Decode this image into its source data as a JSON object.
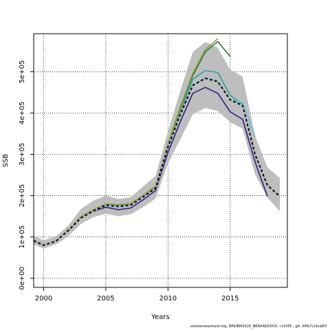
{
  "chart_data": {
    "type": "line",
    "xlabel": "Years",
    "ylabel": "SSB",
    "xlim": [
      1999.2,
      2019.6
    ],
    "ylim": [
      -22000,
      592000
    ],
    "x_ticks": [
      2000,
      2005,
      2010,
      2015
    ],
    "x_tick_labels": [
      "2000",
      "2005",
      "2010",
      "2015"
    ],
    "y_ticks": [
      0,
      100000,
      200000,
      300000,
      400000,
      500000
    ],
    "y_tick_labels": [
      "0e+00",
      "1e+05",
      "2e+05",
      "3e+05",
      "4e+05",
      "5e+05"
    ],
    "grid": true,
    "band": {
      "x": [
        1999,
        2000,
        2001,
        2002,
        2003,
        2004,
        2005,
        2006,
        2007,
        2008,
        2009,
        2010,
        2011,
        2012,
        2013,
        2014,
        2015,
        2016,
        2017,
        2018,
        2019
      ],
      "upper": [
        103000,
        92000,
        102000,
        128000,
        168000,
        188000,
        200000,
        192000,
        196000,
        222000,
        248000,
        355000,
        455000,
        548000,
        572000,
        558000,
        505000,
        488000,
        345000,
        268000,
        243000
      ],
      "lower": [
        82000,
        72000,
        82000,
        102000,
        132000,
        148000,
        156000,
        150000,
        155000,
        172000,
        193000,
        278000,
        337000,
        397000,
        412000,
        405000,
        378000,
        362000,
        252000,
        195000,
        162000
      ]
    },
    "series": [
      {
        "color": "#1e7b3a",
        "dash": false,
        "x": [
          1999,
          2000,
          2001,
          2002,
          2003,
          2004,
          2005,
          2006,
          2007,
          2008,
          2009,
          2010,
          2011,
          2012,
          2013,
          2014,
          2015
        ],
        "values": [
          91000,
          81000,
          91000,
          117000,
          148000,
          165000,
          178000,
          177000,
          180000,
          200000,
          221000,
          323000,
          412000,
          491000,
          548000,
          573000,
          537000
        ]
      },
      {
        "color": "#8a9a22",
        "dash": false,
        "x": [
          1999,
          2000,
          2001,
          2002,
          2003,
          2004,
          2005,
          2006,
          2007,
          2008,
          2009,
          2010,
          2011,
          2012,
          2013,
          2014
        ],
        "values": [
          92000,
          81000,
          91000,
          118000,
          149000,
          166000,
          180000,
          178000,
          181000,
          201000,
          223000,
          326000,
          415000,
          496000,
          553000,
          580000
        ]
      },
      {
        "color": "#23a09a",
        "dash": false,
        "x": [
          1999,
          2000,
          2001,
          2002,
          2003,
          2004,
          2005,
          2006,
          2007,
          2008,
          2009,
          2010,
          2011,
          2012,
          2013,
          2014,
          2015,
          2016
        ],
        "values": [
          90000,
          80000,
          90000,
          116000,
          147000,
          164000,
          177000,
          175000,
          178000,
          198000,
          218000,
          318000,
          402000,
          482000,
          503000,
          498000,
          443000,
          420000
        ]
      },
      {
        "color": "#5bc0e0",
        "dash": false,
        "x": [
          1999,
          2000,
          2001,
          2002,
          2003,
          2004,
          2005,
          2006,
          2007,
          2008,
          2009,
          2010,
          2011,
          2012,
          2013,
          2014,
          2015,
          2016,
          2017
        ],
        "values": [
          90000,
          80000,
          90000,
          116000,
          146000,
          163000,
          175000,
          172000,
          176000,
          196000,
          216000,
          314000,
          396000,
          468000,
          486000,
          478000,
          432000,
          425000,
          342000
        ]
      },
      {
        "color": "#2d1b88",
        "dash": false,
        "x": [
          1999,
          2000,
          2001,
          2002,
          2003,
          2004,
          2005,
          2006,
          2007,
          2008,
          2009,
          2010,
          2011,
          2012,
          2013,
          2014,
          2015,
          2016,
          2017,
          2018
        ],
        "values": [
          90000,
          80000,
          90000,
          115000,
          146000,
          162000,
          172000,
          166000,
          170000,
          190000,
          212000,
          305000,
          380000,
          448000,
          462000,
          448000,
          403000,
          385000,
          282000,
          198000
        ]
      },
      {
        "color": "#000000",
        "dash": true,
        "x": [
          1999,
          2000,
          2001,
          2002,
          2003,
          2004,
          2005,
          2006,
          2007,
          2008,
          2009,
          2010,
          2011,
          2012,
          2013,
          2014,
          2015,
          2016,
          2017,
          2018,
          2019
        ],
        "values": [
          91000,
          80000,
          90000,
          116000,
          146000,
          163000,
          177000,
          174000,
          177000,
          197000,
          218000,
          318000,
          397000,
          467000,
          484000,
          476000,
          432000,
          418000,
          300000,
          225000,
          198000
        ]
      }
    ]
  },
  "footer": "stockassessment.org, WKDEM2020_NEAHADDOCK, r11565 , git: df0b7c1bcb83"
}
